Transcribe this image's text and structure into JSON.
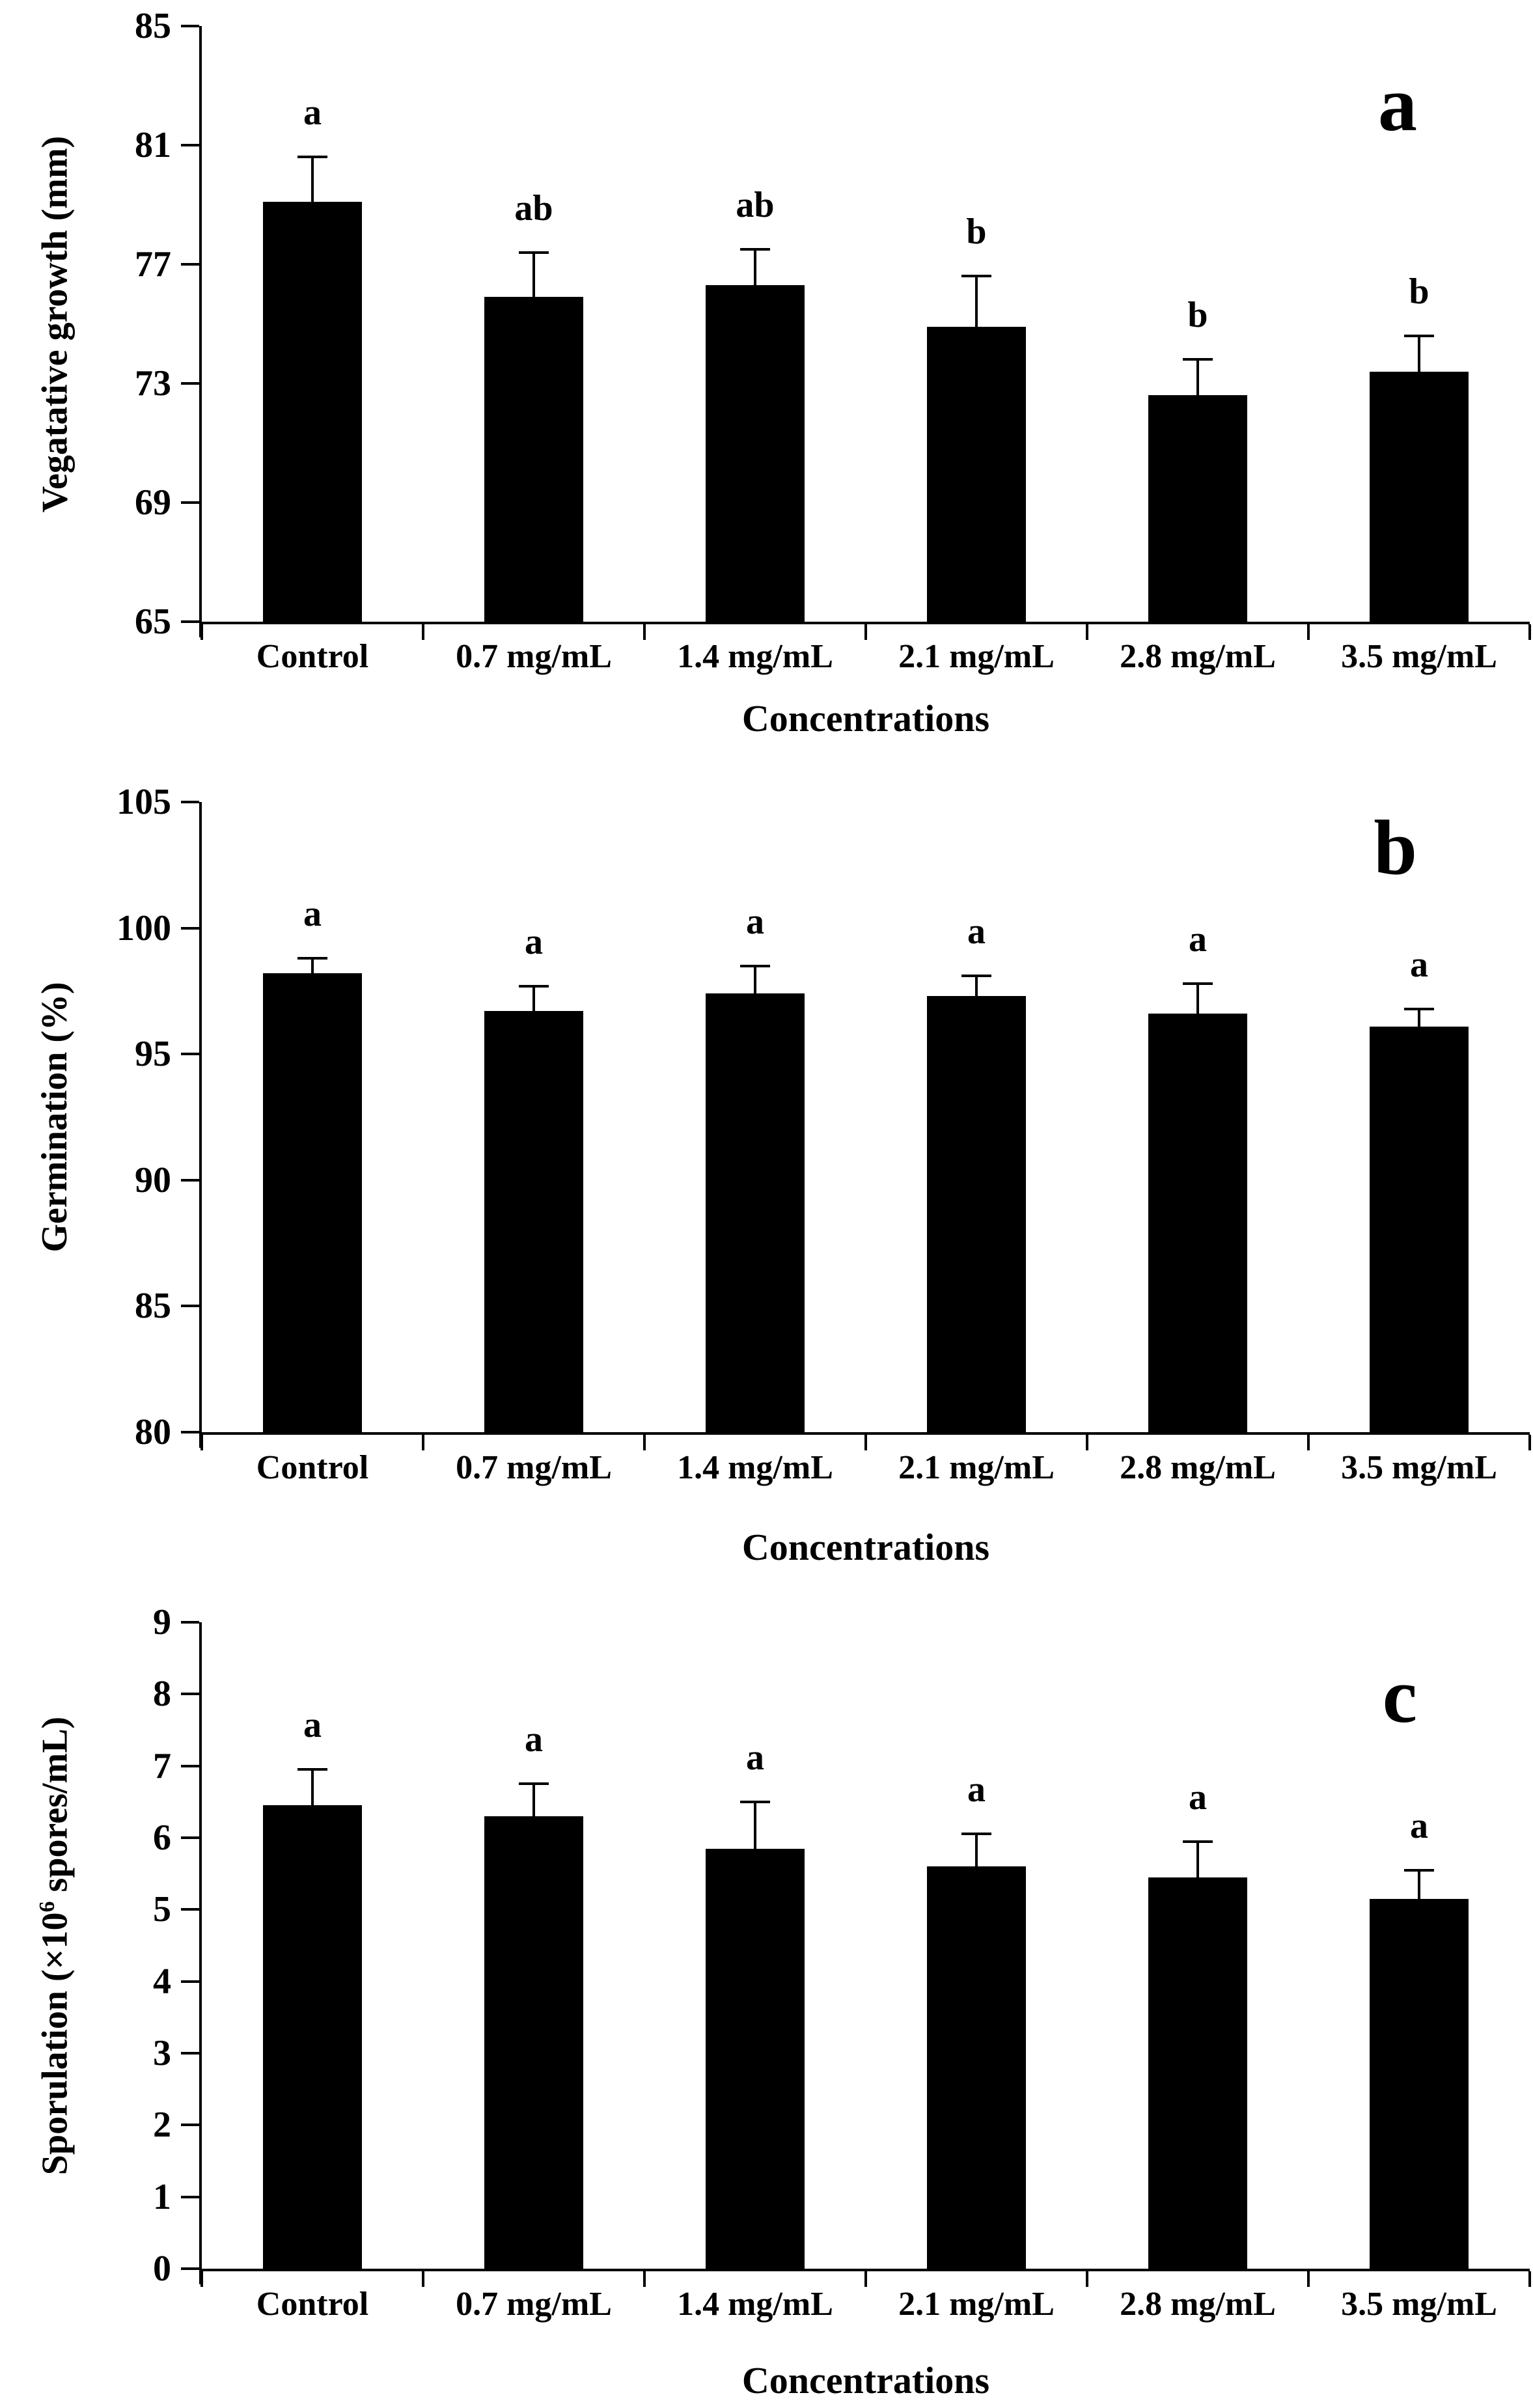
{
  "figure": {
    "background_color": "#ffffff",
    "bar_color": "#000000",
    "axis_color": "#000000"
  },
  "chart_data": [
    {
      "type": "bar",
      "panel_letter": "a",
      "title": "",
      "ylabel_parts": {
        "pre": "Vegatative growth (mm)",
        "sup": "",
        "post": ""
      },
      "xlabel": "Concentrations",
      "categories": [
        "Control",
        "0.7 mg/mL",
        "1.4 mg/mL",
        "2.1 mg/mL",
        "2.8 mg/mL",
        "3.5 mg/mL"
      ],
      "values": [
        79.1,
        75.9,
        76.3,
        74.9,
        72.6,
        73.4
      ],
      "errors": [
        1.5,
        1.5,
        1.2,
        1.7,
        1.2,
        1.2
      ],
      "sig_letters": [
        "a",
        "ab",
        "ab",
        "b",
        "b",
        "b"
      ],
      "ylim": [
        65,
        85
      ],
      "yticks": [
        85,
        81,
        77,
        73,
        69,
        65
      ],
      "grid": false,
      "legend": null
    },
    {
      "type": "bar",
      "panel_letter": "b",
      "title": "",
      "ylabel_parts": {
        "pre": "Germination (%)",
        "sup": "",
        "post": ""
      },
      "xlabel": "Concentrations",
      "categories": [
        "Control",
        "0.7 mg/mL",
        "1.4 mg/mL",
        "2.1 mg/mL",
        "2.8 mg/mL",
        "3.5 mg/mL"
      ],
      "values": [
        98.2,
        96.7,
        97.4,
        97.3,
        96.6,
        96.1
      ],
      "errors": [
        0.6,
        1.0,
        1.1,
        0.8,
        1.2,
        0.7
      ],
      "sig_letters": [
        "a",
        "a",
        "a",
        "a",
        "a",
        "a"
      ],
      "ylim": [
        80,
        105
      ],
      "yticks": [
        105,
        100,
        95,
        90,
        85,
        80
      ],
      "grid": false,
      "legend": null
    },
    {
      "type": "bar",
      "panel_letter": "c",
      "title": "",
      "ylabel_parts": {
        "pre": "Sporulation (×10",
        "sup": "6",
        "post": " spores/mL)"
      },
      "xlabel": "Concentrations",
      "categories": [
        "Control",
        "0.7 mg/mL",
        "1.4 mg/mL",
        "2.1 mg/mL",
        "2.8 mg/mL",
        "3.5 mg/mL"
      ],
      "values": [
        6.45,
        6.3,
        5.85,
        5.6,
        5.45,
        5.15
      ],
      "errors": [
        0.5,
        0.45,
        0.65,
        0.45,
        0.5,
        0.4
      ],
      "sig_letters": [
        "a",
        "a",
        "a",
        "a",
        "a",
        "a"
      ],
      "ylim": [
        0,
        9
      ],
      "yticks": [
        9,
        8,
        7,
        6,
        5,
        4,
        3,
        2,
        1,
        0
      ],
      "grid": false,
      "legend": null
    }
  ]
}
